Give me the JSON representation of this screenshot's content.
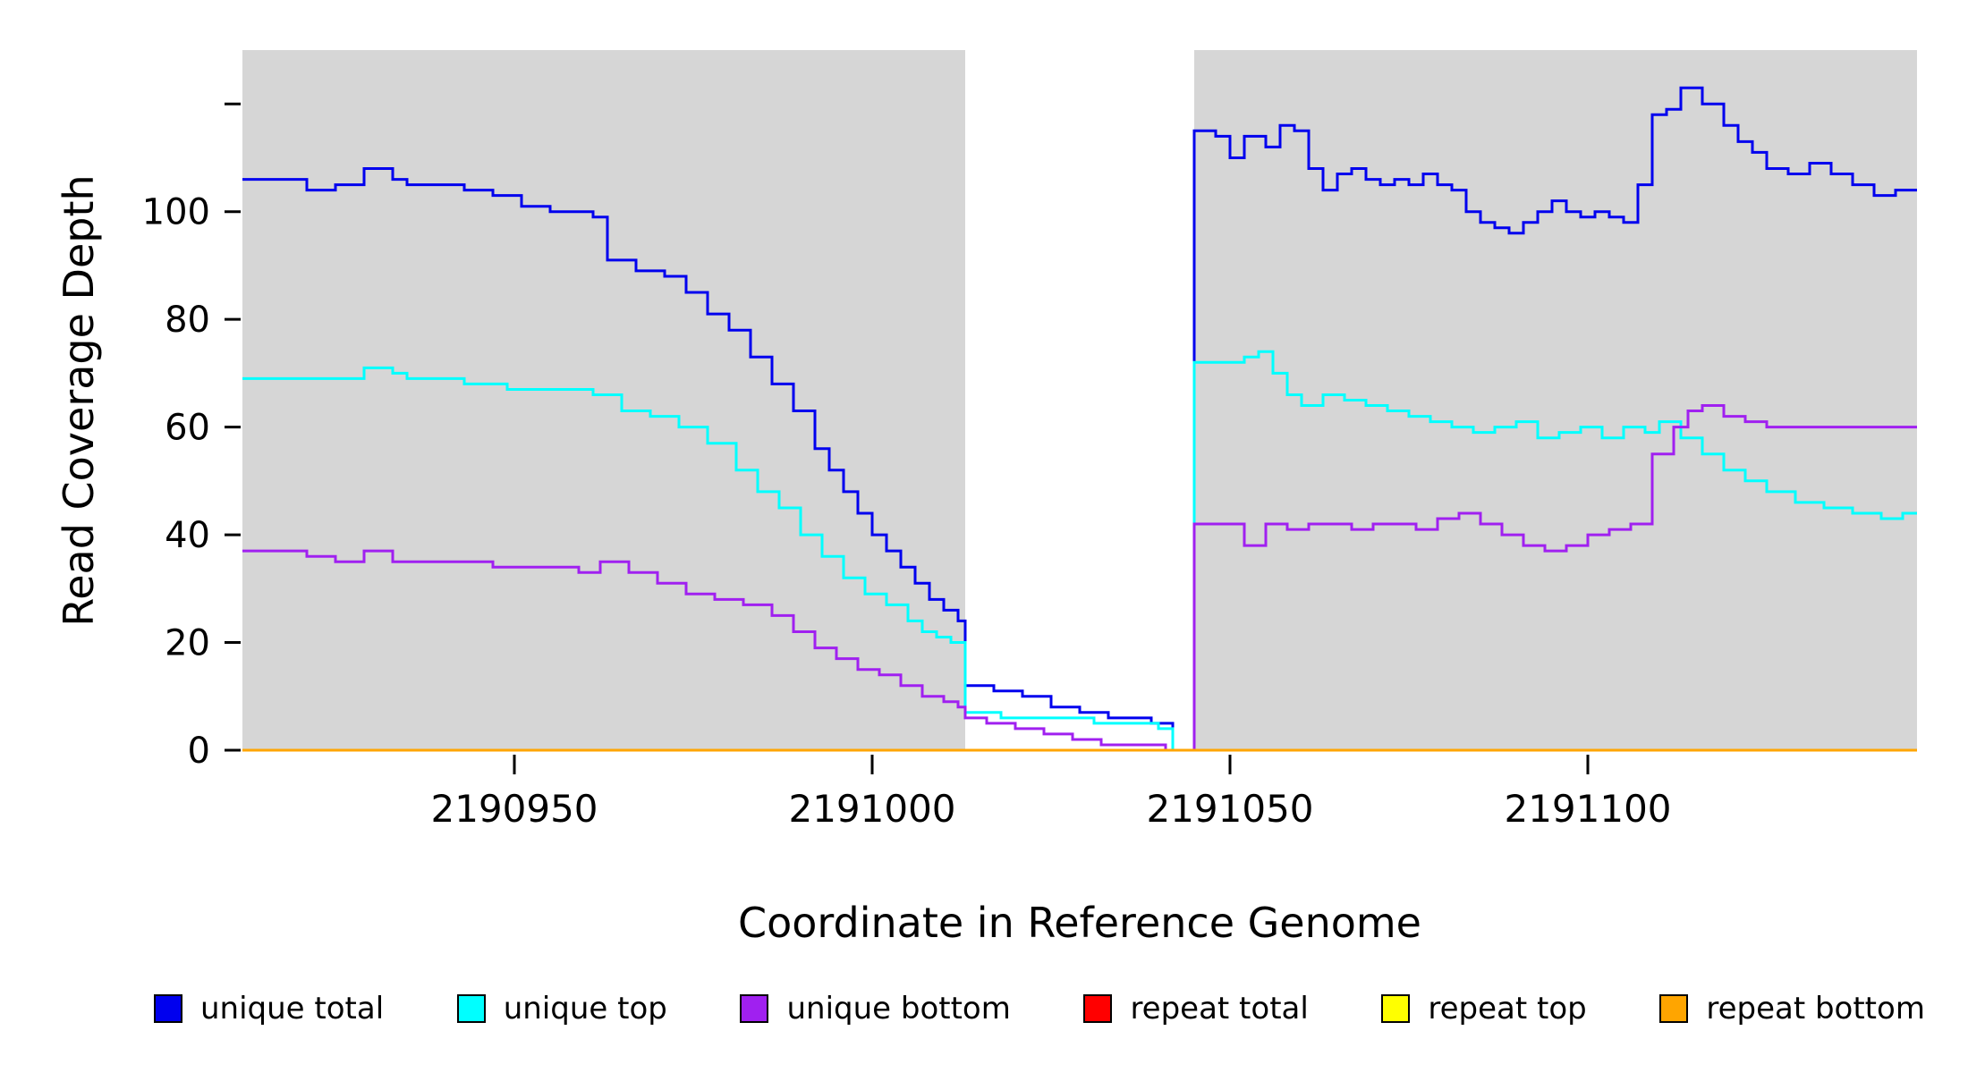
{
  "chart_data": {
    "type": "line",
    "style": "step",
    "title": "",
    "xlabel": "Coordinate in Reference Genome",
    "ylabel": "Read Coverage Depth",
    "xlim": [
      2190912,
      2191146
    ],
    "ylim": [
      0,
      130
    ],
    "x_ticks": [
      2190950,
      2191000,
      2191050,
      2191100
    ],
    "y_ticks": [
      0,
      20,
      40,
      60,
      80,
      100,
      120
    ],
    "y_tick_labels": [
      "0",
      "20",
      "40",
      "60",
      "80",
      "100",
      ""
    ],
    "grid": false,
    "legend_position": "bottom",
    "shaded_regions": [
      {
        "x0": 2190912,
        "x1": 2191013,
        "color": "#d6d6d6"
      },
      {
        "x0": 2191045,
        "x1": 2191146,
        "color": "#d6d6d6"
      }
    ],
    "series": [
      {
        "name": "unique total",
        "color": "#0000ee",
        "points": [
          [
            2190912,
            106
          ],
          [
            2190921,
            104
          ],
          [
            2190925,
            105
          ],
          [
            2190929,
            108
          ],
          [
            2190933,
            106
          ],
          [
            2190935,
            105
          ],
          [
            2190943,
            104
          ],
          [
            2190947,
            103
          ],
          [
            2190951,
            101
          ],
          [
            2190955,
            100
          ],
          [
            2190961,
            99
          ],
          [
            2190963,
            91
          ],
          [
            2190967,
            89
          ],
          [
            2190971,
            88
          ],
          [
            2190974,
            85
          ],
          [
            2190977,
            81
          ],
          [
            2190980,
            78
          ],
          [
            2190983,
            73
          ],
          [
            2190986,
            68
          ],
          [
            2190989,
            63
          ],
          [
            2190992,
            56
          ],
          [
            2190994,
            52
          ],
          [
            2190996,
            48
          ],
          [
            2190998,
            44
          ],
          [
            2191000,
            40
          ],
          [
            2191002,
            37
          ],
          [
            2191004,
            34
          ],
          [
            2191006,
            31
          ],
          [
            2191008,
            28
          ],
          [
            2191010,
            26
          ],
          [
            2191012,
            24
          ],
          [
            2191013,
            12
          ],
          [
            2191017,
            11
          ],
          [
            2191021,
            10
          ],
          [
            2191025,
            8
          ],
          [
            2191029,
            7
          ],
          [
            2191033,
            6
          ],
          [
            2191039,
            5
          ],
          [
            2191042,
            0
          ],
          [
            2191045,
            115
          ],
          [
            2191048,
            114
          ],
          [
            2191050,
            110
          ],
          [
            2191052,
            114
          ],
          [
            2191055,
            112
          ],
          [
            2191057,
            116
          ],
          [
            2191059,
            115
          ],
          [
            2191061,
            108
          ],
          [
            2191063,
            104
          ],
          [
            2191065,
            107
          ],
          [
            2191067,
            108
          ],
          [
            2191069,
            106
          ],
          [
            2191071,
            105
          ],
          [
            2191073,
            106
          ],
          [
            2191075,
            105
          ],
          [
            2191077,
            107
          ],
          [
            2191079,
            105
          ],
          [
            2191081,
            104
          ],
          [
            2191083,
            100
          ],
          [
            2191085,
            98
          ],
          [
            2191087,
            97
          ],
          [
            2191089,
            96
          ],
          [
            2191091,
            98
          ],
          [
            2191093,
            100
          ],
          [
            2191095,
            102
          ],
          [
            2191097,
            100
          ],
          [
            2191099,
            99
          ],
          [
            2191101,
            100
          ],
          [
            2191103,
            99
          ],
          [
            2191105,
            98
          ],
          [
            2191107,
            105
          ],
          [
            2191109,
            118
          ],
          [
            2191111,
            119
          ],
          [
            2191113,
            123
          ],
          [
            2191116,
            120
          ],
          [
            2191119,
            116
          ],
          [
            2191121,
            113
          ],
          [
            2191123,
            111
          ],
          [
            2191125,
            108
          ],
          [
            2191128,
            107
          ],
          [
            2191131,
            109
          ],
          [
            2191134,
            107
          ],
          [
            2191137,
            105
          ],
          [
            2191140,
            103
          ],
          [
            2191143,
            104
          ]
        ]
      },
      {
        "name": "unique top",
        "color": "#00ffff",
        "points": [
          [
            2190912,
            69
          ],
          [
            2190924,
            69
          ],
          [
            2190929,
            71
          ],
          [
            2190933,
            70
          ],
          [
            2190935,
            69
          ],
          [
            2190943,
            68
          ],
          [
            2190949,
            67
          ],
          [
            2190957,
            67
          ],
          [
            2190961,
            66
          ],
          [
            2190965,
            63
          ],
          [
            2190969,
            62
          ],
          [
            2190973,
            60
          ],
          [
            2190977,
            57
          ],
          [
            2190981,
            52
          ],
          [
            2190984,
            48
          ],
          [
            2190987,
            45
          ],
          [
            2190990,
            40
          ],
          [
            2190993,
            36
          ],
          [
            2190996,
            32
          ],
          [
            2190999,
            29
          ],
          [
            2191002,
            27
          ],
          [
            2191005,
            24
          ],
          [
            2191007,
            22
          ],
          [
            2191009,
            21
          ],
          [
            2191011,
            20
          ],
          [
            2191013,
            7
          ],
          [
            2191018,
            6
          ],
          [
            2191026,
            6
          ],
          [
            2191031,
            5
          ],
          [
            2191037,
            5
          ],
          [
            2191040,
            4
          ],
          [
            2191042,
            0
          ],
          [
            2191045,
            72
          ],
          [
            2191049,
            72
          ],
          [
            2191052,
            73
          ],
          [
            2191054,
            74
          ],
          [
            2191056,
            70
          ],
          [
            2191058,
            66
          ],
          [
            2191060,
            64
          ],
          [
            2191063,
            66
          ],
          [
            2191066,
            65
          ],
          [
            2191069,
            64
          ],
          [
            2191072,
            63
          ],
          [
            2191075,
            62
          ],
          [
            2191078,
            61
          ],
          [
            2191081,
            60
          ],
          [
            2191084,
            59
          ],
          [
            2191087,
            60
          ],
          [
            2191090,
            61
          ],
          [
            2191093,
            58
          ],
          [
            2191096,
            59
          ],
          [
            2191099,
            60
          ],
          [
            2191102,
            58
          ],
          [
            2191105,
            60
          ],
          [
            2191108,
            59
          ],
          [
            2191110,
            61
          ],
          [
            2191113,
            58
          ],
          [
            2191116,
            55
          ],
          [
            2191119,
            52
          ],
          [
            2191122,
            50
          ],
          [
            2191125,
            48
          ],
          [
            2191129,
            46
          ],
          [
            2191133,
            45
          ],
          [
            2191137,
            44
          ],
          [
            2191141,
            43
          ],
          [
            2191144,
            44
          ]
        ]
      },
      {
        "name": "unique bottom",
        "color": "#a020f0",
        "points": [
          [
            2190912,
            37
          ],
          [
            2190921,
            36
          ],
          [
            2190925,
            35
          ],
          [
            2190929,
            37
          ],
          [
            2190933,
            35
          ],
          [
            2190941,
            35
          ],
          [
            2190947,
            34
          ],
          [
            2190955,
            34
          ],
          [
            2190959,
            33
          ],
          [
            2190962,
            35
          ],
          [
            2190966,
            33
          ],
          [
            2190970,
            31
          ],
          [
            2190974,
            29
          ],
          [
            2190978,
            28
          ],
          [
            2190982,
            27
          ],
          [
            2190986,
            25
          ],
          [
            2190989,
            22
          ],
          [
            2190992,
            19
          ],
          [
            2190995,
            17
          ],
          [
            2190998,
            15
          ],
          [
            2191001,
            14
          ],
          [
            2191004,
            12
          ],
          [
            2191007,
            10
          ],
          [
            2191010,
            9
          ],
          [
            2191012,
            8
          ],
          [
            2191013,
            6
          ],
          [
            2191016,
            5
          ],
          [
            2191020,
            4
          ],
          [
            2191024,
            3
          ],
          [
            2191028,
            2
          ],
          [
            2191032,
            1
          ],
          [
            2191038,
            1
          ],
          [
            2191041,
            0
          ],
          [
            2191045,
            42
          ],
          [
            2191049,
            42
          ],
          [
            2191052,
            38
          ],
          [
            2191055,
            42
          ],
          [
            2191058,
            41
          ],
          [
            2191061,
            42
          ],
          [
            2191064,
            42
          ],
          [
            2191067,
            41
          ],
          [
            2191070,
            42
          ],
          [
            2191073,
            42
          ],
          [
            2191076,
            41
          ],
          [
            2191079,
            43
          ],
          [
            2191082,
            44
          ],
          [
            2191085,
            42
          ],
          [
            2191088,
            40
          ],
          [
            2191091,
            38
          ],
          [
            2191094,
            37
          ],
          [
            2191097,
            38
          ],
          [
            2191100,
            40
          ],
          [
            2191103,
            41
          ],
          [
            2191106,
            42
          ],
          [
            2191109,
            55
          ],
          [
            2191112,
            60
          ],
          [
            2191114,
            63
          ],
          [
            2191116,
            64
          ],
          [
            2191119,
            62
          ],
          [
            2191122,
            61
          ],
          [
            2191125,
            60
          ],
          [
            2191131,
            60
          ],
          [
            2191138,
            60
          ]
        ]
      },
      {
        "name": "repeat total",
        "color": "#ff0000",
        "points": [
          [
            2190912,
            0
          ]
        ]
      },
      {
        "name": "repeat top",
        "color": "#ffff00",
        "points": [
          [
            2190912,
            0
          ]
        ]
      },
      {
        "name": "repeat bottom",
        "color": "#ffa500",
        "points": [
          [
            2190912,
            0
          ]
        ]
      }
    ]
  }
}
